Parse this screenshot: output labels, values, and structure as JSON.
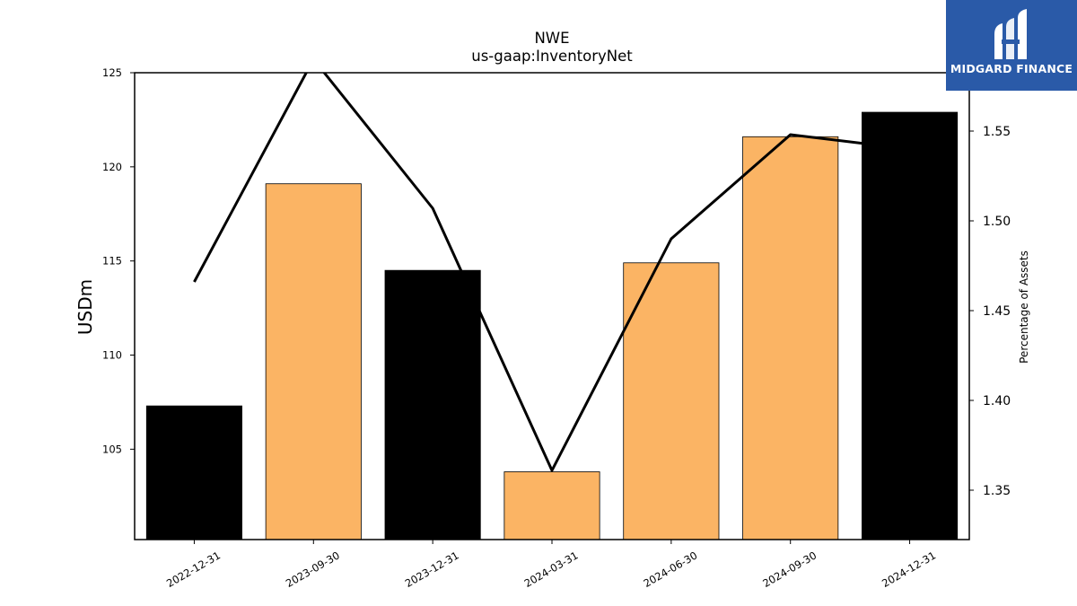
{
  "logo": {
    "text": "MIDGARD FINANCE",
    "icon": "midgard-m-logo-icon",
    "background": "#2a5aa8"
  },
  "chart_data": {
    "type": "bar",
    "title": "NWE",
    "subtitle": "us-gaap:InventoryNet",
    "ylabel": "USDm",
    "y2label": "Percentage of Assets",
    "categories": [
      "2022-12-31",
      "2023-09-30",
      "2023-12-31",
      "2024-03-31",
      "2024-06-30",
      "2024-09-30",
      "2024-12-31"
    ],
    "series": [
      {
        "values": [
          107.3,
          119.1,
          114.5,
          103.8,
          114.9,
          121.6,
          122.9
        ],
        "colors": [
          "#000000",
          "#fbb464",
          "#000000",
          "#fbb464",
          "#fbb464",
          "#fbb464",
          "#000000"
        ],
        "axis": "left"
      },
      {
        "type": "line",
        "values": [
          1.466,
          1.59,
          1.507,
          1.361,
          1.49,
          1.548,
          1.54
        ],
        "color": "#000000",
        "axis": "right"
      }
    ],
    "ylim": [
      100.2,
      125
    ],
    "yticks": [
      105,
      110,
      115,
      120,
      125
    ],
    "y2lim": [
      1.3225,
      1.5825
    ],
    "y2ticks": [
      "1.35",
      "1.40",
      "1.45",
      "1.50",
      "1.55"
    ],
    "grid": false
  }
}
